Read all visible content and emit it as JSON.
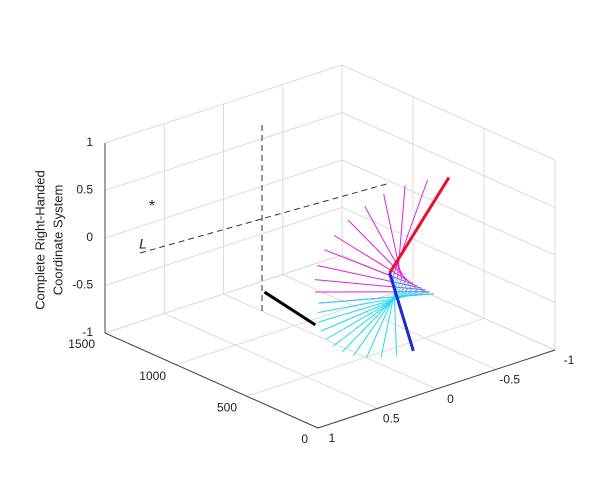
{
  "chart_data": {
    "type": "line3d",
    "zlabel_lines": [
      "Complete Right-Handed",
      "Coordinate System"
    ],
    "xlim": [
      -1,
      1
    ],
    "xticks": [
      -1,
      -0.5,
      0,
      0.5,
      1
    ],
    "ylim": [
      0,
      1500
    ],
    "yticks": [
      0,
      500,
      1000,
      1500
    ],
    "zlim": [
      -1,
      1
    ],
    "zticks": [
      -1,
      -0.5,
      0,
      0.5,
      1
    ],
    "grid": true,
    "annotations": [
      "*",
      "L"
    ],
    "series": [
      {
        "color": "#e8102a",
        "x": [
          0,
          -0.5
        ],
        "y": [
          330,
          330
        ],
        "z": [
          0,
          0.8
        ]
      },
      {
        "color": "#1a2ad0",
        "x": [
          0,
          -0.2
        ],
        "y": [
          330,
          330
        ],
        "z": [
          0,
          -0.9
        ]
      },
      {
        "color": "#000000",
        "x": [
          -0.22,
          -0.11
        ],
        "y": [
          1395,
          945
        ],
        "z": [
          -1,
          -1
        ]
      }
    ],
    "fans": [
      {
        "color": "#e020e0",
        "base_x": [
          0,
          -0.027,
          -0.055,
          -0.082,
          -0.109,
          -0.136,
          -0.164,
          -0.191,
          -0.218,
          -0.245,
          -0.273,
          -0.3
        ],
        "base_y": [
          330,
          325,
          319,
          314,
          308,
          303,
          297,
          292,
          286,
          281,
          276,
          270
        ],
        "base_z": [
          0,
          -0.027,
          -0.055,
          -0.082,
          -0.109,
          -0.136,
          -0.164,
          -0.191,
          -0.218,
          -0.245,
          -0.273,
          -0.3
        ],
        "end_x": [
          -0.5,
          -0.32,
          -0.13,
          0.05,
          0.21,
          0.35,
          0.47,
          0.55,
          0.61,
          0.63,
          0.63,
          0.6
        ],
        "end_y": [
          330,
          330,
          330,
          330,
          330,
          330,
          330,
          330,
          330,
          330,
          330,
          330
        ],
        "end_z": [
          0.8,
          0.85,
          0.87,
          0.85,
          0.79,
          0.7,
          0.59,
          0.47,
          0.33,
          0.19,
          0.06,
          -0.07
        ]
      },
      {
        "color": "#22d8f0",
        "base_x": [
          -0.3,
          -0.273,
          -0.245,
          -0.218,
          -0.191,
          -0.164,
          -0.136,
          -0.109,
          -0.082,
          -0.055,
          -0.027,
          0
        ],
        "base_y": [
          270,
          276,
          281,
          286,
          292,
          297,
          303,
          308,
          314,
          319,
          325,
          330
        ],
        "base_z": [
          -0.3,
          -0.273,
          -0.245,
          -0.218,
          -0.191,
          -0.164,
          -0.136,
          -0.109,
          -0.082,
          -0.055,
          -0.027,
          0
        ],
        "end_x": [
          0.6,
          0.606,
          0.601,
          0.578,
          0.536,
          0.477,
          0.399,
          0.305,
          0.196,
          0.073,
          -0.059,
          -0.2
        ],
        "end_y": [
          330,
          330,
          330,
          330,
          330,
          330,
          330,
          330,
          330,
          330,
          330,
          330
        ],
        "end_z": [
          -0.07,
          -0.167,
          -0.269,
          -0.372,
          -0.475,
          -0.573,
          -0.664,
          -0.744,
          -0.81,
          -0.859,
          -0.889,
          -0.9
        ]
      }
    ]
  }
}
